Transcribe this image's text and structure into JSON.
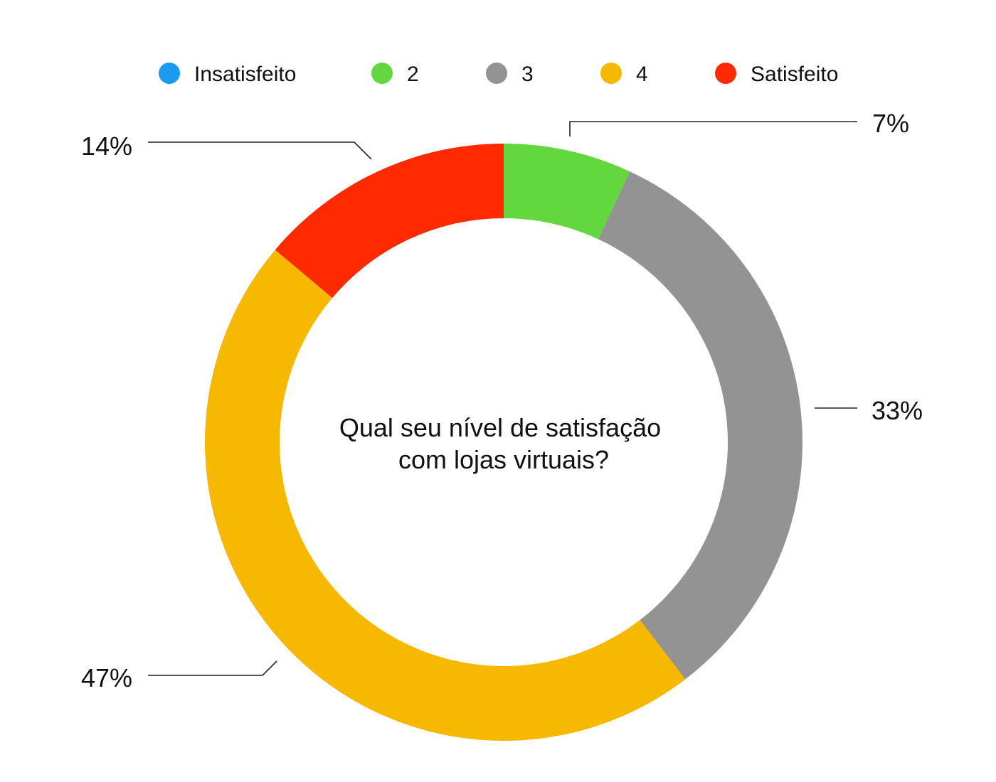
{
  "chart_data": {
    "type": "pie",
    "donut": true,
    "title": "Qual seu nível de satisfação com lojas virtuais?",
    "title_lines": [
      "Qual seu nível de satisfação",
      "com lojas virtuais?"
    ],
    "categories": [
      "Insatisfeito",
      "2",
      "3",
      "4",
      "Satisfeito"
    ],
    "values": [
      0,
      7,
      33,
      47,
      14
    ],
    "value_labels": [
      "",
      "7%",
      "33%",
      "47%",
      "14%"
    ],
    "colors": [
      "#1a9bf0",
      "#62d83e",
      "#939393",
      "#f6b800",
      "#ff2a00"
    ],
    "legend_position": "top",
    "start_angle": "12 o'clock",
    "direction": "clockwise"
  }
}
